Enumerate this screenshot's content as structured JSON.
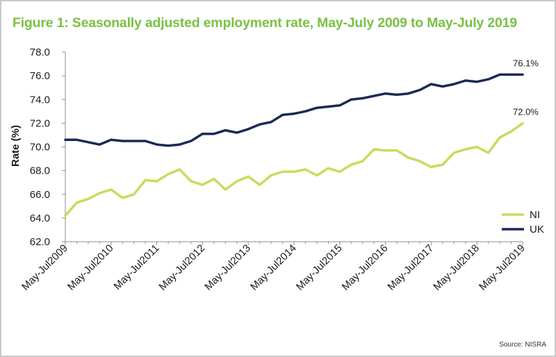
{
  "title": "Figure 1: Seasonally adjusted employment rate, May-July 2009 to May-July 2019",
  "source": "Source: NISRA",
  "chart_data": {
    "type": "line",
    "title": "Figure 1: Seasonally adjusted employment rate, May-July 2009 to May-July 2019",
    "ylabel": "Rate (%)",
    "xlabel": "",
    "ylim": [
      62.0,
      78.0
    ],
    "yticks": [
      "62.0",
      "64.0",
      "66.0",
      "68.0",
      "70.0",
      "72.0",
      "74.0",
      "76.0",
      "78.0"
    ],
    "x_tick_labels": [
      "May-Jul2009",
      "May-Jul2010",
      "May-Jul2011",
      "May-Jul2012",
      "May-Jul2013",
      "May-Jul2014",
      "May-Jul2015",
      "May-Jul2016",
      "May-Jul2017",
      "May-Jul2018",
      "May-Jul2019"
    ],
    "points_per_year": 4,
    "grid": false,
    "legend_position": "right",
    "series": [
      {
        "name": "NI",
        "color": "#c8dc5a",
        "end_label": "72.0%",
        "values": [
          64.2,
          65.3,
          65.6,
          66.1,
          66.4,
          65.7,
          66.0,
          67.2,
          67.1,
          67.7,
          68.1,
          67.1,
          66.8,
          67.3,
          66.4,
          67.1,
          67.5,
          66.8,
          67.6,
          67.9,
          67.9,
          68.1,
          67.6,
          68.2,
          67.9,
          68.5,
          68.8,
          69.8,
          69.7,
          69.7,
          69.1,
          68.8,
          68.3,
          68.5,
          69.5,
          69.8,
          70.0,
          69.5,
          70.8,
          71.3,
          72.0
        ]
      },
      {
        "name": "UK",
        "color": "#1b2a54",
        "end_label": "76.1%",
        "values": [
          70.6,
          70.6,
          70.4,
          70.2,
          70.6,
          70.5,
          70.5,
          70.5,
          70.2,
          70.1,
          70.2,
          70.5,
          71.1,
          71.1,
          71.4,
          71.2,
          71.5,
          71.9,
          72.1,
          72.7,
          72.8,
          73.0,
          73.3,
          73.4,
          73.5,
          74.0,
          74.1,
          74.3,
          74.5,
          74.4,
          74.5,
          74.8,
          75.3,
          75.1,
          75.3,
          75.6,
          75.5,
          75.7,
          76.1,
          76.1,
          76.1
        ]
      }
    ]
  }
}
